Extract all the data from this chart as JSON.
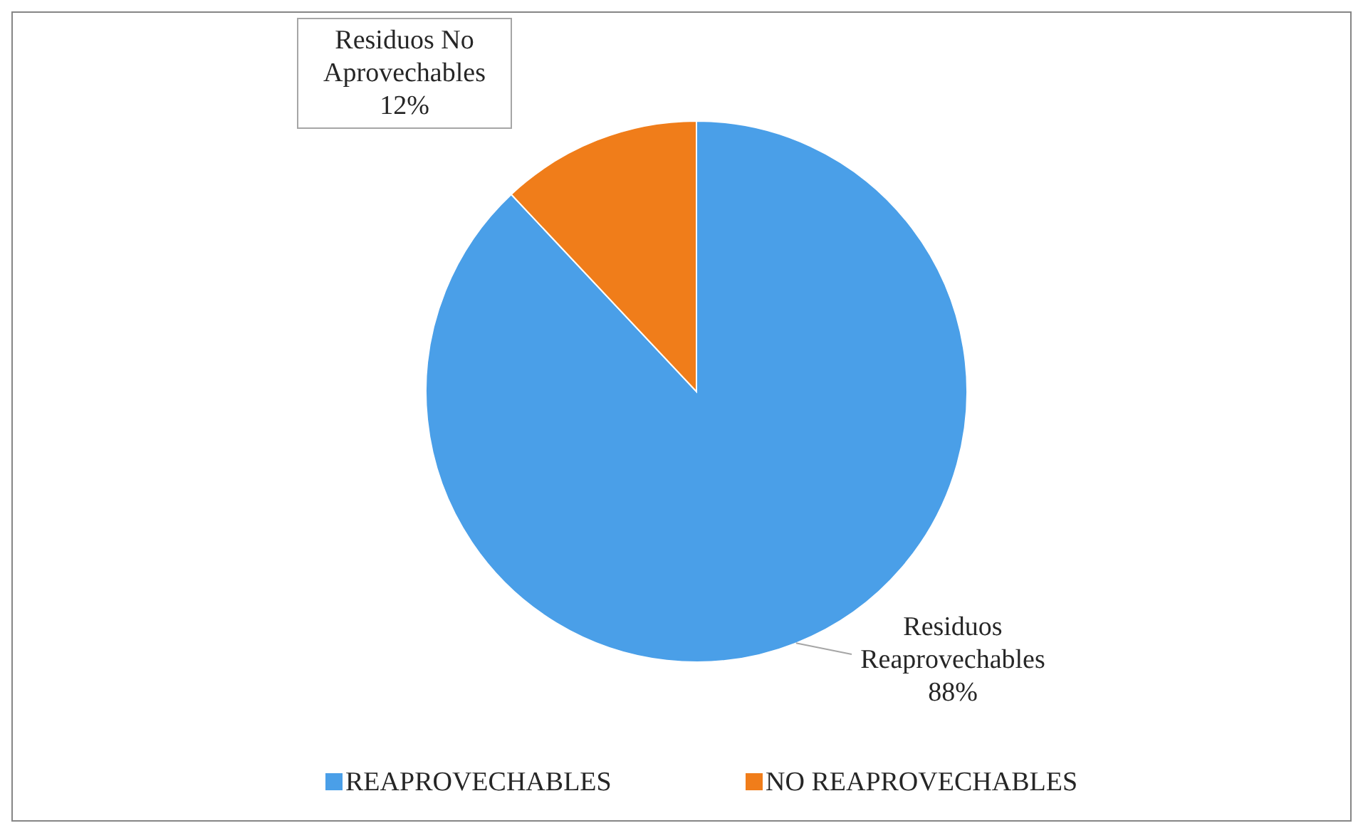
{
  "chart_data": {
    "type": "pie",
    "categories": [
      "REAPROVECHABLES",
      "NO REAPROVECHABLES"
    ],
    "values": [
      88,
      12
    ],
    "colors": [
      "#4a9fe8",
      "#f07d1a"
    ],
    "value_labels": [
      "Residuos Reaprovechables 88%",
      "Residuos No Aprovechables 12%"
    ],
    "legend": "bottom"
  }
}
